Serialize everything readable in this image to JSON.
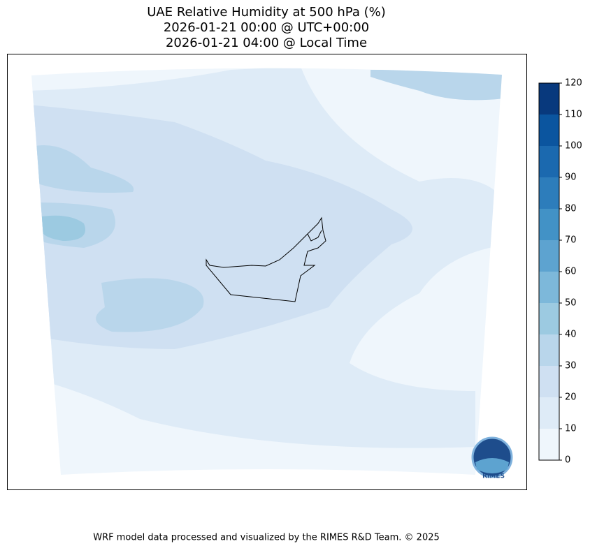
{
  "title": [
    "UAE Relative Humidity at 500 hPa (%)",
    "2026-01-21 00:00 @ UTC+00:00",
    "2026-01-21 04:00 @ Local Time"
  ],
  "colorbar": {
    "ticks": [
      0,
      10,
      20,
      30,
      40,
      50,
      60,
      70,
      80,
      90,
      100,
      110,
      120
    ],
    "colors": [
      "#eff6fc",
      "#deebf7",
      "#cfe0f2",
      "#b9d6eb",
      "#9ccae1",
      "#7db8da",
      "#5da3d0",
      "#4292c6",
      "#2d7dbb",
      "#1b69af",
      "#0b559f",
      "#08397d"
    ]
  },
  "logo_text": "RIMES",
  "footer": "WRF model data processed and visualized by the RIMES R&D Team. © 2025"
}
